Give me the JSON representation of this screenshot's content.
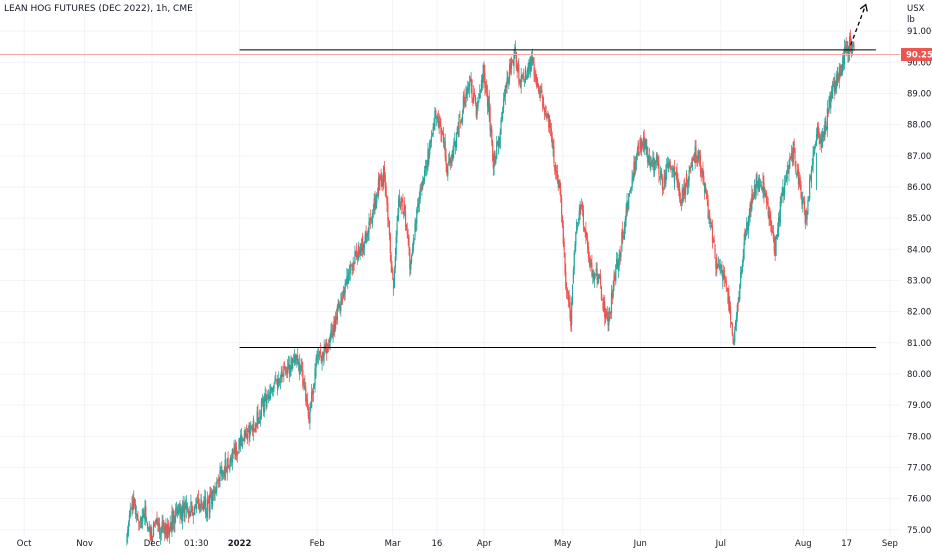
{
  "header": {
    "title": "LEAN HOG FUTURES (DEC 2022), 1h, CME",
    "currency": "USX",
    "unit": "lb"
  },
  "colors": {
    "up": "#26a69a",
    "down": "#ef5350",
    "level_line": "#000000",
    "price_line": "#f7a5a6",
    "price_label_bg": "#ef5350",
    "grid": "#f0f3fa",
    "axis_text": "#131722"
  },
  "chart_data": {
    "type": "candlestick",
    "title": "LEAN HOG FUTURES (DEC 2022), 1h, CME",
    "y_ticks": [
      75,
      76,
      77,
      78,
      79,
      80,
      81,
      82,
      83,
      84,
      85,
      86,
      87,
      88,
      89,
      90,
      91
    ],
    "y_tick_labels": [
      "75.000",
      "76.000",
      "77.000",
      "78.000",
      "79.000",
      "80.000",
      "81.000",
      "82.000",
      "83.000",
      "84.000",
      "85.000",
      "86.000",
      "87.000",
      "88.000",
      "89.000",
      "90.000",
      "91.000"
    ],
    "ylim": [
      74.8,
      92.0
    ],
    "x_ticks": [
      {
        "t": 0,
        "label": "Oct"
      },
      {
        "t": 60,
        "label": "Nov"
      },
      {
        "t": 127,
        "label": "Dec"
      },
      {
        "t": 171,
        "label": "01:30"
      },
      {
        "t": 214,
        "label": "2022"
      },
      {
        "t": 291,
        "label": "Feb"
      },
      {
        "t": 366,
        "label": "Mar"
      },
      {
        "t": 410,
        "label": "16"
      },
      {
        "t": 457,
        "label": "Apr"
      },
      {
        "t": 535,
        "label": "May"
      },
      {
        "t": 612,
        "label": "Jun"
      },
      {
        "t": 692,
        "label": "Jul"
      },
      {
        "t": 774,
        "label": "Aug"
      },
      {
        "t": 817,
        "label": "17"
      },
      {
        "t": 860,
        "label": "Sep"
      }
    ],
    "xlim": [
      -24,
      870
    ],
    "waypoints": [
      [
        102,
        74.9
      ],
      [
        108,
        75.9
      ],
      [
        113,
        75.1
      ],
      [
        120,
        75.6
      ],
      [
        126,
        74.9
      ],
      [
        132,
        75.2
      ],
      [
        140,
        74.9
      ],
      [
        148,
        75.4
      ],
      [
        158,
        75.6
      ],
      [
        168,
        75.7
      ],
      [
        176,
        75.9
      ],
      [
        182,
        75.7
      ],
      [
        192,
        76.6
      ],
      [
        200,
        77.0
      ],
      [
        210,
        77.5
      ],
      [
        220,
        78.1
      ],
      [
        228,
        78.3
      ],
      [
        236,
        78.9
      ],
      [
        244,
        79.4
      ],
      [
        252,
        79.7
      ],
      [
        260,
        80.1
      ],
      [
        270,
        80.5
      ],
      [
        278,
        79.8
      ],
      [
        283,
        78.6
      ],
      [
        290,
        80.3
      ],
      [
        298,
        80.7
      ],
      [
        306,
        81.3
      ],
      [
        312,
        82.1
      ],
      [
        318,
        82.7
      ],
      [
        326,
        83.5
      ],
      [
        332,
        84.0
      ],
      [
        340,
        84.4
      ],
      [
        346,
        85.1
      ],
      [
        352,
        86.1
      ],
      [
        357,
        86.4
      ],
      [
        362,
        84.6
      ],
      [
        367,
        83.0
      ],
      [
        372,
        85.7
      ],
      [
        378,
        85.2
      ],
      [
        384,
        83.3
      ],
      [
        390,
        85.1
      ],
      [
        396,
        86.3
      ],
      [
        402,
        87.1
      ],
      [
        408,
        88.2
      ],
      [
        414,
        88.0
      ],
      [
        420,
        86.6
      ],
      [
        426,
        87.1
      ],
      [
        432,
        88.0
      ],
      [
        438,
        88.9
      ],
      [
        444,
        89.2
      ],
      [
        450,
        88.4
      ],
      [
        456,
        89.7
      ],
      [
        462,
        88.4
      ],
      [
        466,
        86.8
      ],
      [
        472,
        87.5
      ],
      [
        478,
        89.0
      ],
      [
        484,
        90.0
      ],
      [
        488,
        90.3
      ],
      [
        492,
        89.3
      ],
      [
        498,
        89.7
      ],
      [
        504,
        90.1
      ],
      [
        510,
        89.4
      ],
      [
        516,
        88.6
      ],
      [
        522,
        88.1
      ],
      [
        528,
        86.3
      ],
      [
        533,
        85.8
      ],
      [
        538,
        83.0
      ],
      [
        543,
        81.8
      ],
      [
        548,
        84.6
      ],
      [
        553,
        85.6
      ],
      [
        558,
        84.3
      ],
      [
        564,
        83.3
      ],
      [
        570,
        83.2
      ],
      [
        575,
        82.3
      ],
      [
        580,
        81.5
      ],
      [
        586,
        83.0
      ],
      [
        592,
        84.0
      ],
      [
        598,
        85.1
      ],
      [
        604,
        86.4
      ],
      [
        610,
        87.3
      ],
      [
        616,
        87.5
      ],
      [
        622,
        86.6
      ],
      [
        628,
        86.8
      ],
      [
        634,
        86.1
      ],
      [
        640,
        86.7
      ],
      [
        646,
        86.4
      ],
      [
        652,
        85.6
      ],
      [
        658,
        86.1
      ],
      [
        664,
        87.0
      ],
      [
        670,
        87.1
      ],
      [
        676,
        85.9
      ],
      [
        682,
        84.7
      ],
      [
        688,
        83.4
      ],
      [
        694,
        83.2
      ],
      [
        700,
        82.3
      ],
      [
        705,
        81.0
      ],
      [
        710,
        82.6
      ],
      [
        716,
        84.3
      ],
      [
        722,
        85.4
      ],
      [
        728,
        86.2
      ],
      [
        734,
        86.1
      ],
      [
        740,
        85.0
      ],
      [
        746,
        84.0
      ],
      [
        752,
        85.6
      ],
      [
        758,
        86.4
      ],
      [
        764,
        87.2
      ],
      [
        770,
        86.1
      ],
      [
        776,
        85.0
      ],
      [
        782,
        86.4
      ],
      [
        788,
        88.0
      ],
      [
        792,
        87.3
      ],
      [
        797,
        88.2
      ],
      [
        802,
        89.0
      ],
      [
        808,
        89.4
      ],
      [
        814,
        90.2
      ],
      [
        820,
        90.6
      ],
      [
        825,
        90.25
      ]
    ],
    "spikes": [
      [
        787,
        85.9
      ]
    ],
    "resistance_level": 90.4,
    "support_level": 80.85,
    "level_lines_range": [
      214,
      846
    ],
    "last_price": 90.25,
    "last_price_label": "90.250",
    "projection": {
      "from": [
        821,
        90.55
      ],
      "to": [
        836,
        91.85
      ],
      "style": "dashed-arrow"
    }
  }
}
